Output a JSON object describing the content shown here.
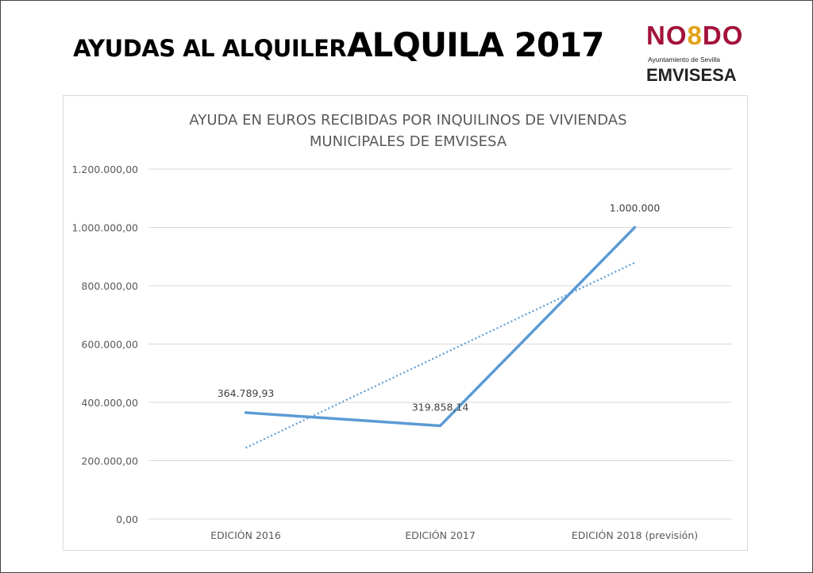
{
  "header": {
    "title_left": "AYUDAS AL ALQUILER",
    "title_right": "ALQUILA 2017"
  },
  "logo": {
    "nodo": "NO8DO",
    "subtitle": "Ayuntamiento de Sevilla",
    "brand": "EMVISESA"
  },
  "chart_data": {
    "type": "line",
    "title_lines": [
      "AYUDA EN EUROS RECIBIDAS POR INQUILINOS DE VIVIENDAS",
      "MUNICIPALES DE EMVISESA"
    ],
    "categories": [
      "EDICIÓN 2016",
      "EDICIÓN 2017",
      "EDICIÓN 2018 (previsión)"
    ],
    "series": [
      {
        "name": "Ayuda",
        "values": [
          364789.93,
          319858.14,
          1000000
        ],
        "color": "#5b9bd5"
      }
    ],
    "data_labels": [
      "364.789,93",
      "319.858,14",
      "1.000.000"
    ],
    "trendline": {
      "type": "linear",
      "style": "dotted",
      "color": "#5b9bd5"
    },
    "ylim": [
      0,
      1200000
    ],
    "yticks": [
      0,
      200000,
      400000,
      600000,
      800000,
      1000000,
      1200000
    ],
    "ytick_labels": [
      "0,00",
      "200.000,00",
      "400.000,00",
      "600.000,00",
      "800.000,00",
      "1.000.000,00",
      "1.200.000,00"
    ],
    "grid": true,
    "xlabel": "",
    "ylabel": ""
  }
}
